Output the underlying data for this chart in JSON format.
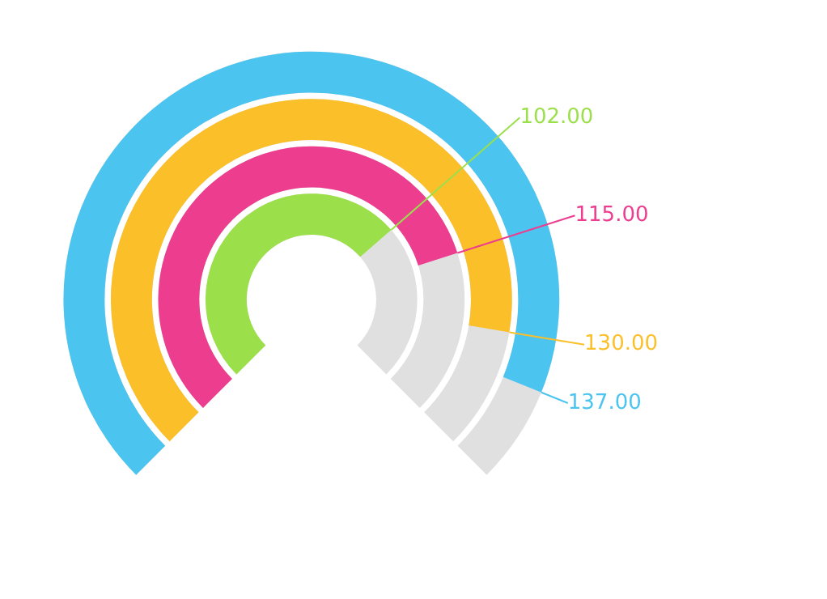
{
  "chart_data": {
    "type": "other",
    "categories": [
      null,
      null,
      null,
      null
    ],
    "values": [
      102,
      115,
      130,
      137
    ],
    "value_labels": [
      "102.00",
      "115.00",
      "130.00",
      "137.00"
    ],
    "colors": [
      "#9be04a",
      "#ec3d8f",
      "#fbbf2a",
      "#4cc4f0"
    ]
  }
}
